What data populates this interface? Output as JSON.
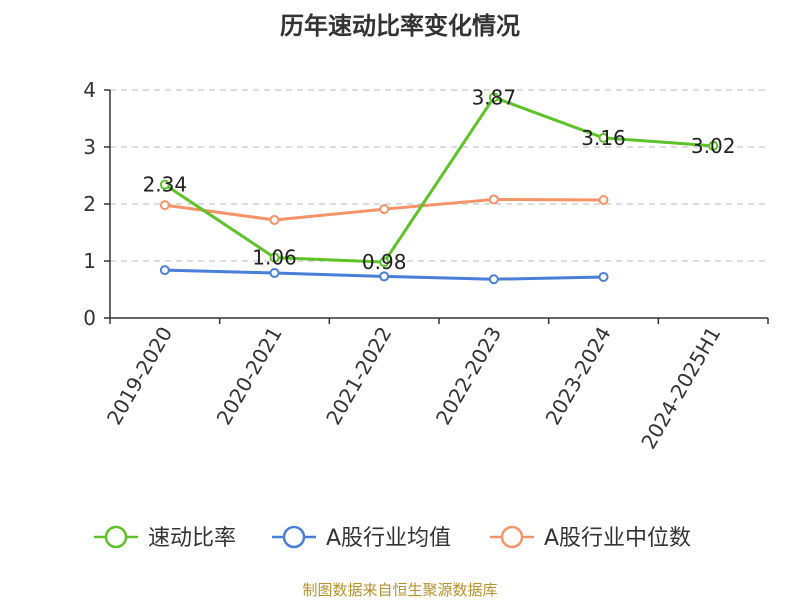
{
  "chart_data": {
    "type": "line",
    "title": "历年速动比率变化情况",
    "categories": [
      "2019-2020",
      "2020-2021",
      "2021-2022",
      "2022-2023",
      "2023-2024",
      "2024-2025H1"
    ],
    "y_ticks": [
      "0",
      "1",
      "2",
      "3",
      "4"
    ],
    "ylim": [
      0,
      4
    ],
    "grid": true,
    "legend_position": "bottom",
    "series": [
      {
        "name": "速动比率",
        "color": "#5ec229",
        "values": [
          2.34,
          1.06,
          0.98,
          3.87,
          3.16,
          3.02
        ],
        "labels": [
          "2.34",
          "1.06",
          "0.98",
          "3.87",
          "3.16",
          "3.02"
        ]
      },
      {
        "name": "A股行业均值",
        "color": "#4a7fd9",
        "values": [
          0.84,
          0.79,
          0.73,
          0.68,
          0.72,
          null
        ]
      },
      {
        "name": "A股行业中位数",
        "color": "#f59468",
        "values": [
          1.98,
          1.72,
          1.91,
          2.08,
          2.07,
          null
        ]
      }
    ]
  },
  "footer": {
    "source": "制图数据来自恒生聚源数据库"
  }
}
